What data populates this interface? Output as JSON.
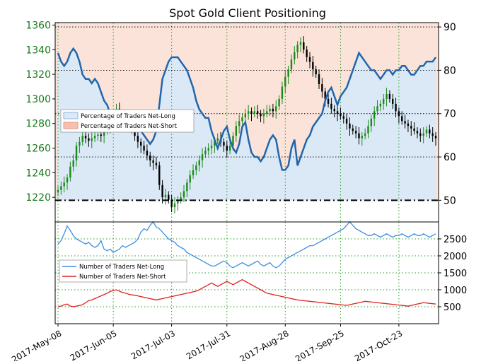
{
  "chart_data": {
    "type": "candlestick+line",
    "title": "Spot Gold Client Positioning",
    "colors": {
      "net_long_line": "#2166ac",
      "net_long_fill": "#dbe9f6",
      "net_short_fill": "#fbe3d9",
      "candle_up": "#1a8a1a",
      "candle_down": "#000000",
      "traders_long": "#3e8ee0",
      "traders_short": "#e02020",
      "left_axis_text": "#1a7a1a"
    },
    "x_tick_labels": [
      "2017-May-08",
      "2017-Jun-05",
      "2017-Jul-03",
      "2017-Jul-31",
      "2017-Aug-28",
      "2017-Sep-25",
      "2017-Oct-23"
    ],
    "price_axis": {
      "label_side": "left",
      "ticks": [
        1220,
        1240,
        1260,
        1280,
        1300,
        1320,
        1340,
        1360
      ],
      "range": [
        1200,
        1362
      ]
    },
    "pct_axis": {
      "label_side": "right",
      "ticks": [
        50,
        60,
        70,
        80,
        90
      ],
      "range": [
        45,
        91
      ],
      "reference_line": 50
    },
    "traders_axis": {
      "label_side": "right",
      "ticks": [
        500,
        1000,
        1500,
        2000,
        2500
      ],
      "range": [
        0,
        3000
      ]
    },
    "legend_top": {
      "placement": "middle-left",
      "entries": [
        "Percentage of Traders Net-Long",
        "Percentage of Traders Net-Short"
      ]
    },
    "legend_bottom": {
      "placement": "middle-left",
      "entries": [
        "Number of Traders Net-Long",
        "Number of Traders Net-Short"
      ]
    },
    "price_close": [
      1226,
      1229,
      1232,
      1236,
      1245,
      1250,
      1262,
      1265,
      1270,
      1268,
      1266,
      1268,
      1270,
      1271,
      1270,
      1274,
      1276,
      1279,
      1285,
      1292,
      1286,
      1285,
      1282,
      1280,
      1275,
      1270,
      1265,
      1262,
      1258,
      1254,
      1250,
      1248,
      1246,
      1230,
      1220,
      1222,
      1218,
      1212,
      1215,
      1218,
      1220,
      1225,
      1232,
      1238,
      1242,
      1246,
      1250,
      1255,
      1258,
      1260,
      1262,
      1266,
      1268,
      1265,
      1262,
      1258,
      1262,
      1270,
      1278,
      1282,
      1285,
      1288,
      1290,
      1288,
      1290,
      1288,
      1286,
      1288,
      1290,
      1292,
      1290,
      1294,
      1300,
      1310,
      1318,
      1324,
      1332,
      1338,
      1344,
      1346,
      1340,
      1334,
      1330,
      1324,
      1320,
      1312,
      1306,
      1300,
      1296,
      1292,
      1290,
      1288,
      1286,
      1284,
      1280,
      1276,
      1274,
      1272,
      1268,
      1270,
      1272,
      1278,
      1284,
      1290,
      1294,
      1296,
      1300,
      1304,
      1300,
      1296,
      1290,
      1286,
      1282,
      1280,
      1278,
      1276,
      1274,
      1272,
      1270,
      1272,
      1275,
      1272,
      1270,
      1268
    ],
    "pct_net_long": [
      84,
      82,
      81,
      82,
      84,
      85,
      84,
      82,
      79,
      78,
      78,
      77,
      78,
      77,
      75,
      73,
      72,
      70,
      69,
      70,
      68,
      67,
      66,
      66,
      67,
      68,
      67,
      66,
      65,
      64,
      63,
      64,
      66,
      72,
      78,
      80,
      82,
      83,
      83,
      83,
      82,
      81,
      80,
      78,
      76,
      73,
      71,
      70,
      69,
      69,
      66,
      64,
      62,
      64,
      66,
      67,
      64,
      62,
      61,
      63,
      67,
      68,
      64,
      61,
      60,
      60,
      59,
      60,
      62,
      64,
      65,
      64,
      60,
      57,
      57,
      58,
      62,
      64,
      58,
      60,
      62,
      64,
      65,
      67,
      68,
      69,
      70,
      73,
      75,
      76,
      74,
      72,
      74,
      75,
      76,
      78,
      80,
      82,
      84,
      83,
      82,
      81,
      80,
      80,
      79,
      78,
      79,
      80,
      80,
      79,
      80,
      80,
      81,
      81,
      80,
      79,
      79,
      80,
      81,
      81,
      82,
      82,
      82,
      83
    ],
    "traders_net_long": [
      2350,
      2450,
      2650,
      2880,
      2750,
      2600,
      2500,
      2450,
      2400,
      2350,
      2400,
      2300,
      2250,
      2300,
      2450,
      2200,
      2150,
      2200,
      2100,
      2150,
      2200,
      2300,
      2250,
      2300,
      2350,
      2400,
      2500,
      2700,
      2800,
      2750,
      2900,
      3000,
      2850,
      2800,
      2700,
      2600,
      2500,
      2450,
      2400,
      2300,
      2250,
      2200,
      2100,
      2050,
      2000,
      1950,
      1900,
      1850,
      1800,
      1750,
      1700,
      1700,
      1750,
      1800,
      1850,
      1800,
      1700,
      1650,
      1700,
      1750,
      1800,
      1750,
      1700,
      1750,
      1800,
      1850,
      1750,
      1700,
      1750,
      1800,
      1700,
      1650,
      1700,
      1800,
      1900,
      1950,
      2000,
      2050,
      2100,
      2150,
      2200,
      2250,
      2300,
      2300,
      2350,
      2400,
      2450,
      2500,
      2550,
      2600,
      2650,
      2700,
      2750,
      2800,
      2900,
      3000,
      2900,
      2800,
      2750,
      2700,
      2650,
      2600,
      2600,
      2650,
      2600,
      2550,
      2600,
      2650,
      2600,
      2550,
      2600,
      2600,
      2650,
      2600,
      2550,
      2600,
      2650,
      2600,
      2600,
      2650,
      2600,
      2550,
      2600,
      2650
    ],
    "traders_net_short": [
      500,
      520,
      560,
      580,
      520,
      500,
      520,
      540,
      560,
      620,
      680,
      700,
      740,
      780,
      820,
      860,
      900,
      950,
      980,
      1000,
      960,
      920,
      900,
      870,
      850,
      840,
      820,
      800,
      780,
      760,
      740,
      720,
      700,
      720,
      740,
      760,
      780,
      800,
      820,
      840,
      860,
      880,
      900,
      920,
      940,
      960,
      1000,
      1050,
      1100,
      1150,
      1200,
      1150,
      1100,
      1150,
      1200,
      1250,
      1200,
      1150,
      1200,
      1250,
      1300,
      1250,
      1200,
      1150,
      1100,
      1050,
      1000,
      950,
      900,
      880,
      860,
      840,
      820,
      800,
      780,
      760,
      740,
      720,
      700,
      690,
      680,
      670,
      660,
      650,
      640,
      630,
      620,
      610,
      600,
      590,
      580,
      570,
      560,
      550,
      540,
      560,
      580,
      600,
      620,
      640,
      660,
      650,
      640,
      630,
      620,
      610,
      600,
      590,
      580,
      570,
      560,
      550,
      540,
      530,
      520,
      540,
      560,
      580,
      600,
      620,
      610,
      600,
      590,
      580
    ]
  }
}
